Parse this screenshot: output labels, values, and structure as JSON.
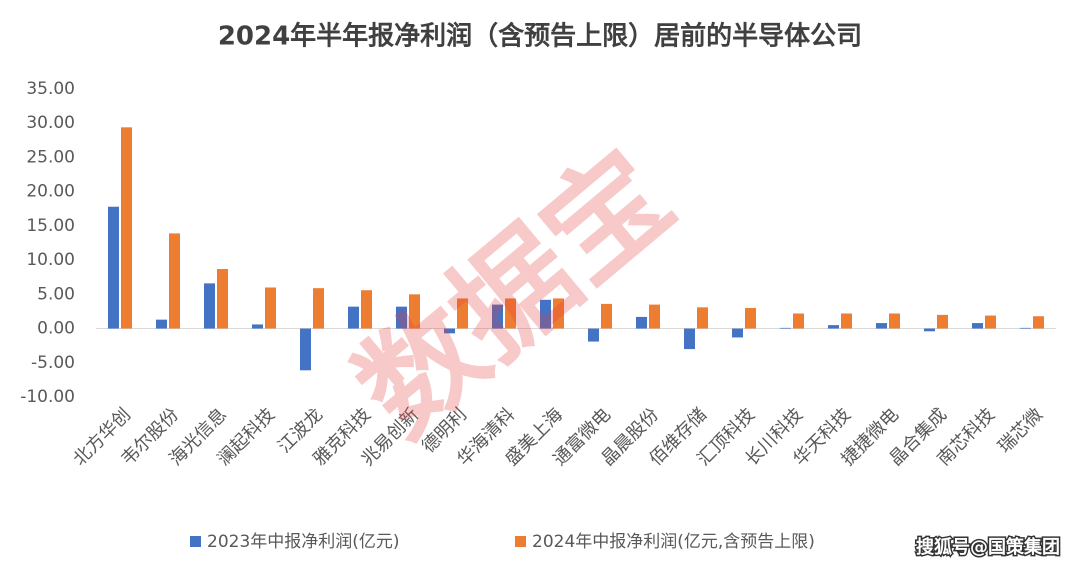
{
  "chart_data": {
    "type": "bar",
    "title": "2024年半年报净利润（含预告上限）居前的半导体公司",
    "categories": [
      "北方华创",
      "韦尔股份",
      "海光信息",
      "澜起科技",
      "江波龙",
      "雅克科技",
      "兆易创新",
      "德明利",
      "华海清科",
      "盛美上海",
      "通富微电",
      "晶晨股份",
      "佰维存储",
      "汇顶科技",
      "长川科技",
      "华天科技",
      "捷捷微电",
      "晶合集成",
      "南芯科技",
      "瑞芯微"
    ],
    "series": [
      {
        "name": "2023年中报净利润(亿元)",
        "color": "#4472c4",
        "values": [
          17.8,
          1.3,
          6.6,
          0.6,
          -6.1,
          3.2,
          3.2,
          -0.7,
          3.5,
          4.2,
          -1.9,
          1.7,
          -3.0,
          -1.3,
          0.1,
          0.5,
          0.8,
          -0.4,
          0.8,
          0.1
        ]
      },
      {
        "name": "2024年中报净利润(亿元,含预告上限)",
        "color": "#ed7d31",
        "values": [
          29.4,
          13.9,
          8.7,
          6.0,
          5.9,
          5.6,
          5.0,
          4.4,
          4.4,
          4.4,
          3.6,
          3.5,
          3.1,
          3.0,
          2.2,
          2.2,
          2.2,
          2.0,
          1.9,
          1.8
        ]
      }
    ],
    "ylim": [
      -10,
      35
    ],
    "yticks": [
      {
        "value": -10,
        "label": "-10.00"
      },
      {
        "value": -5,
        "label": "-5.00"
      },
      {
        "value": 0,
        "label": "0.00"
      },
      {
        "value": 5,
        "label": "5.00"
      },
      {
        "value": 10,
        "label": "10.00"
      },
      {
        "value": 15,
        "label": "15.00"
      },
      {
        "value": 20,
        "label": "20.00"
      },
      {
        "value": 25,
        "label": "25.00"
      },
      {
        "value": 30,
        "label": "30.00"
      },
      {
        "value": 35,
        "label": "35.00"
      }
    ],
    "grid": false,
    "legend": "bottom",
    "watermark": "数据宝",
    "source": "搜狐号@国策集团"
  }
}
